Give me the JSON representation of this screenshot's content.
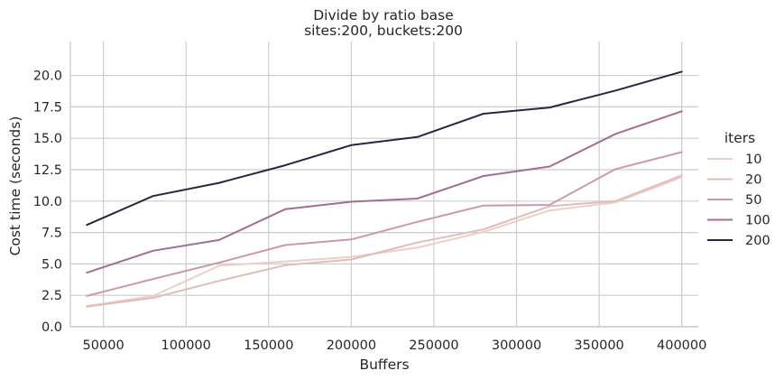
{
  "chart_data": {
    "type": "line",
    "title": "Divide by ratio base",
    "subtitle": "sites:200, buckets:200",
    "xlabel": "Buffers",
    "ylabel": "Cost time (seconds)",
    "xlim": [
      30000,
      410000
    ],
    "ylim": [
      0,
      22.7
    ],
    "grid": true,
    "legend_title": "iters",
    "legend_placement": "right",
    "x": [
      40000,
      80000,
      120000,
      160000,
      200000,
      240000,
      280000,
      320000,
      360000,
      400000
    ],
    "x_ticks": [
      50000,
      100000,
      150000,
      200000,
      250000,
      300000,
      350000,
      400000
    ],
    "x_tick_labels": [
      "50000",
      "100000",
      "150000",
      "200000",
      "250000",
      "300000",
      "350000",
      "400000"
    ],
    "y_ticks": [
      0,
      2.5,
      5,
      7.5,
      10,
      12.5,
      15,
      17.5,
      20
    ],
    "y_tick_labels": [
      "0.0",
      "2.5",
      "5.0",
      "7.5",
      "10.0",
      "12.5",
      "15.0",
      "17.5",
      "20.0"
    ],
    "series": [
      {
        "name": "10",
        "color": "#ebcfc8",
        "values": [
          1.65,
          2.45,
          4.85,
          5.2,
          5.55,
          6.3,
          7.55,
          9.25,
          9.9,
          11.9
        ]
      },
      {
        "name": "20",
        "color": "#e0bdb9",
        "values": [
          1.6,
          2.3,
          3.65,
          4.9,
          5.35,
          6.7,
          7.75,
          9.6,
          10.0,
          12.05
        ]
      },
      {
        "name": "50",
        "color": "#cb9aa9",
        "values": [
          2.45,
          3.8,
          5.1,
          6.5,
          6.95,
          8.35,
          9.65,
          9.7,
          12.55,
          13.9
        ]
      },
      {
        "name": "100",
        "color": "#a06f91",
        "values": [
          4.3,
          6.05,
          6.9,
          9.35,
          9.95,
          10.2,
          12.0,
          12.75,
          15.35,
          17.15
        ]
      },
      {
        "name": "200",
        "color": "#2a2540",
        "values": [
          8.1,
          10.4,
          11.45,
          12.85,
          14.45,
          15.1,
          16.95,
          17.45,
          18.8,
          20.3
        ]
      }
    ]
  }
}
